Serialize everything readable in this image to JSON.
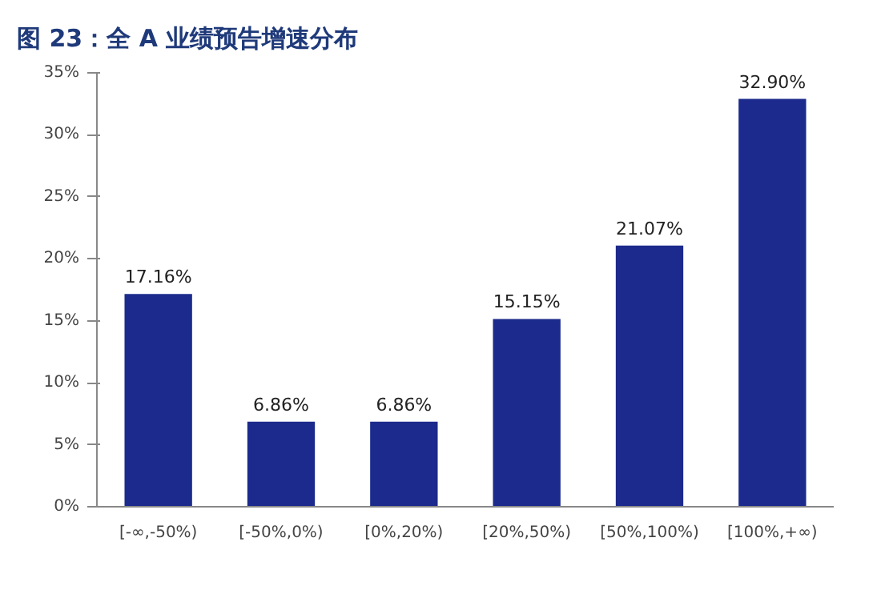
{
  "chart_data": {
    "type": "bar",
    "title": "图 23：全 A 业绩预告增速分布",
    "categories": [
      "[-∞,-50%)",
      "[-50%,0%)",
      "[0%,20%)",
      "[20%,50%)",
      "[50%,100%)",
      "[100%,+∞)"
    ],
    "values": [
      17.16,
      6.86,
      6.86,
      15.15,
      21.07,
      32.9
    ],
    "value_labels": [
      "17.16%",
      "6.86%",
      "6.86%",
      "15.15%",
      "21.07%",
      "32.90%"
    ],
    "color": "#1b2a8c",
    "ylim": [
      0,
      35
    ],
    "yticks": [
      {
        "value": 0,
        "label": "0%"
      },
      {
        "value": 5,
        "label": "5%"
      },
      {
        "value": 10,
        "label": "10%"
      },
      {
        "value": 15,
        "label": "15%"
      },
      {
        "value": 20,
        "label": "20%"
      },
      {
        "value": 25,
        "label": "25%"
      },
      {
        "value": 30,
        "label": "30%"
      },
      {
        "value": 35,
        "label": "35%"
      }
    ],
    "grid": false
  }
}
